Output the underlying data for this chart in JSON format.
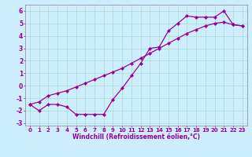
{
  "background_color": "#cceeff",
  "line_color": "#990099",
  "xlim": [
    -0.5,
    23.5
  ],
  "ylim": [
    -3.2,
    6.5
  ],
  "xtick_labels": [
    "0",
    "1",
    "2",
    "3",
    "4",
    "5",
    "6",
    "7",
    "8",
    "9",
    "10",
    "11",
    "12",
    "13",
    "14",
    "15",
    "16",
    "17",
    "18",
    "19",
    "20",
    "21",
    "22",
    "23"
  ],
  "xtick_vals": [
    0,
    1,
    2,
    3,
    4,
    5,
    6,
    7,
    8,
    9,
    10,
    11,
    12,
    13,
    14,
    15,
    16,
    17,
    18,
    19,
    20,
    21,
    22,
    23
  ],
  "ytick_vals": [
    -3,
    -2,
    -1,
    0,
    1,
    2,
    3,
    4,
    5,
    6
  ],
  "ytick_labels": [
    "-3",
    "-2",
    "-1",
    "0",
    "1",
    "2",
    "3",
    "4",
    "5",
    "6"
  ],
  "xlabel": "Windchill (Refroidissement éolien,°C)",
  "grid_color": "#aaddcc",
  "line1_x": [
    0,
    1,
    2,
    3,
    4,
    5,
    6,
    7,
    8,
    9,
    10,
    11,
    12,
    13,
    14,
    15,
    16,
    17,
    18,
    19,
    20,
    21,
    22,
    23
  ],
  "line1_y": [
    -1.5,
    -2.0,
    -1.5,
    -1.5,
    -1.7,
    -2.3,
    -2.3,
    -2.3,
    -2.3,
    -1.1,
    -0.2,
    0.8,
    1.8,
    3.0,
    3.1,
    4.4,
    5.0,
    5.6,
    5.5,
    5.5,
    5.5,
    6.0,
    4.9,
    4.8
  ],
  "line2_x": [
    0,
    1,
    2,
    3,
    4,
    5,
    6,
    7,
    8,
    9,
    10,
    11,
    12,
    13,
    14,
    15,
    16,
    17,
    18,
    19,
    20,
    21,
    22,
    23
  ],
  "line2_y": [
    -1.5,
    -1.3,
    -0.8,
    -0.6,
    -0.4,
    -0.1,
    0.2,
    0.5,
    0.8,
    1.1,
    1.4,
    1.8,
    2.2,
    2.6,
    3.0,
    3.4,
    3.8,
    4.2,
    4.5,
    4.8,
    5.0,
    5.1,
    4.9,
    4.8
  ],
  "marker": "D",
  "markersize": 2.2,
  "linewidth": 0.9,
  "tick_fontsize": 5.0,
  "xlabel_fontsize": 5.5
}
